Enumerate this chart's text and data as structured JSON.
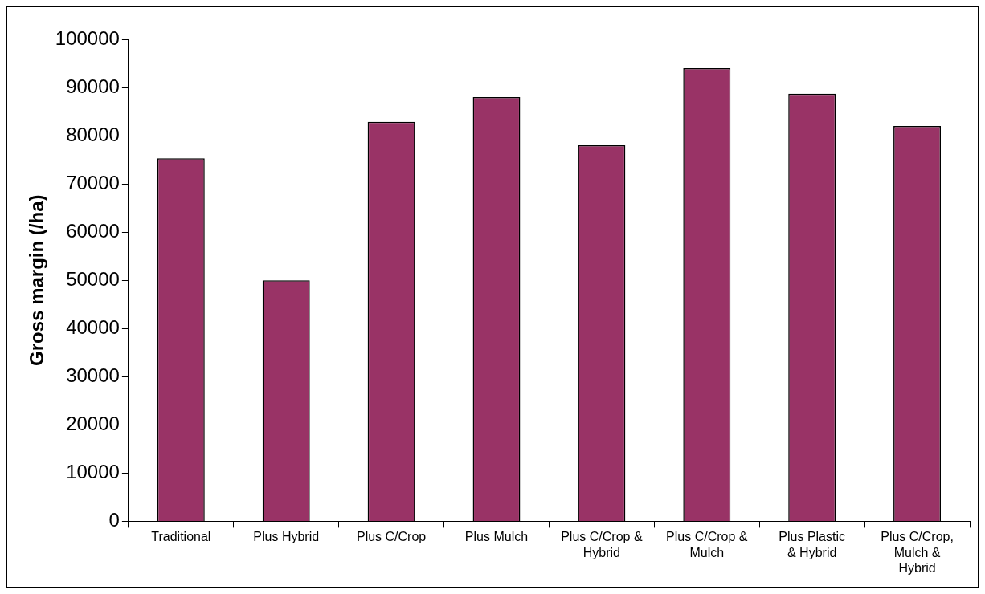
{
  "chart_data": {
    "type": "bar",
    "ylabel": "Gross margin (/ha)",
    "categories": [
      "Traditional",
      "Plus Hybrid",
      "Plus C/Crop",
      "Plus Mulch",
      "Plus C/Crop & Hybrid",
      "Plus C/Crop & Mulch",
      "Plus Plastic & Hybrid",
      "Plus C/Crop, Mulch & Hybrid"
    ],
    "values": [
      75300,
      50000,
      82900,
      88000,
      78000,
      94000,
      88700,
      82000
    ],
    "color": "#993366",
    "ylim": [
      0,
      100000
    ],
    "yticks": [
      0,
      10000,
      20000,
      30000,
      40000,
      50000,
      60000,
      70000,
      80000,
      90000,
      100000
    ],
    "grid": false,
    "legend": false
  }
}
